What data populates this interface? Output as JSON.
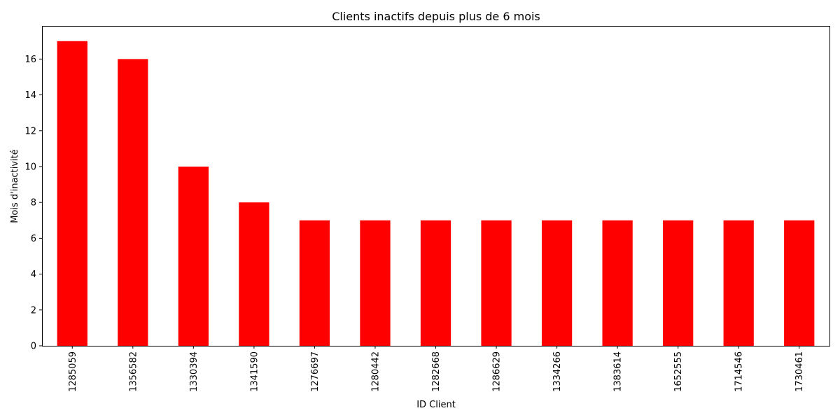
{
  "chart_data": {
    "type": "bar",
    "title": "Clients inactifs depuis plus de 6 mois",
    "xlabel": "ID Client",
    "ylabel": "Mois d'inactivité",
    "categories": [
      "1285059",
      "1356582",
      "1330394",
      "1341590",
      "1276697",
      "1280442",
      "1282668",
      "1286629",
      "1334266",
      "1383614",
      "1652555",
      "1714546",
      "1730461"
    ],
    "values": [
      17,
      16,
      10,
      8,
      7,
      7,
      7,
      7,
      7,
      7,
      7,
      7,
      7
    ],
    "ylim": [
      0,
      17.85
    ],
    "yticks": [
      0,
      2,
      4,
      6,
      8,
      10,
      12,
      14,
      16
    ],
    "bar_color": "#ff0000",
    "grid": false,
    "legend": "none"
  }
}
